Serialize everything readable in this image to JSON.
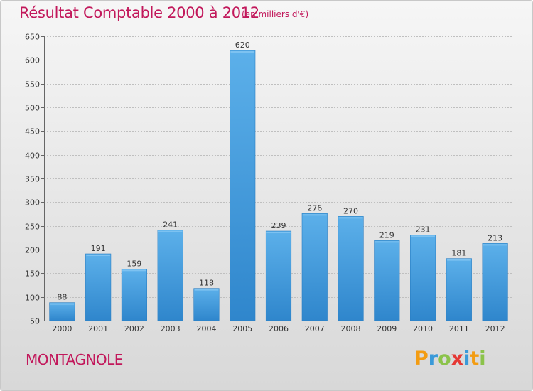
{
  "chart_data": {
    "type": "bar",
    "title": "Résultat Comptable 2000 à 2012",
    "subtitle": "(en milliers d'€)",
    "categories": [
      "2000",
      "2001",
      "2002",
      "2003",
      "2004",
      "2005",
      "2006",
      "2007",
      "2008",
      "2009",
      "2010",
      "2011",
      "2012"
    ],
    "values": [
      88,
      191,
      159,
      241,
      118,
      620,
      239,
      276,
      270,
      219,
      231,
      181,
      213
    ],
    "ylim": [
      50,
      650
    ],
    "yticks": [
      50,
      100,
      150,
      200,
      250,
      300,
      350,
      400,
      450,
      500,
      550,
      600,
      650
    ],
    "xlabel": "",
    "ylabel": "",
    "grid": true,
    "bar_color": "#3a94d8",
    "bar_color_light": "#5cb0ea"
  },
  "footer": {
    "commune": "MONTAGNOLE",
    "logo_letters": [
      "P",
      "r",
      "o",
      "x",
      "i",
      "t",
      "i"
    ]
  },
  "colors": {
    "title": "#c2185b",
    "frame": "#c8c8c8"
  }
}
